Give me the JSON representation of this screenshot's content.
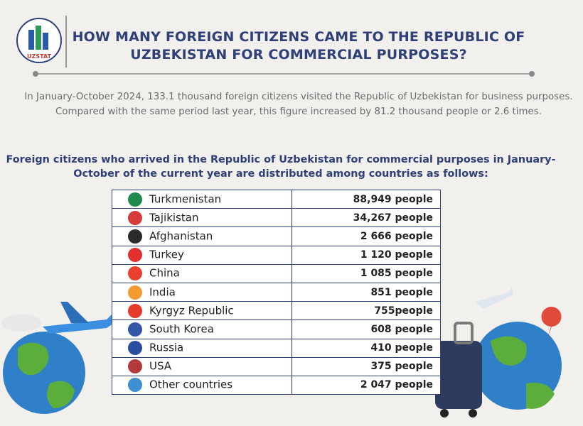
{
  "header": {
    "logo_text": "UZSTAT",
    "title": "HOW MANY FOREIGN CITIZENS CAME TO THE REPUBLIC OF UZBEKISTAN FOR COMMERCIAL PURPOSES?"
  },
  "intro": "In January-October 2024, 133.1 thousand foreign citizens visited the Republic of Uzbekistan for business purposes. Compared with the same period last year, this figure increased by 81.2 thousand people or 2.6 times.",
  "subtitle": "Foreign citizens who arrived in the Republic of Uzbekistan for commercial purposes in January-October of the current year are distributed among countries as follows:",
  "table": {
    "rows": [
      [
        "Turkmenistan",
        "88,949 people"
      ],
      [
        "Tajikistan",
        "34,267 people"
      ],
      [
        "Afghanistan",
        "2 666 people"
      ],
      [
        "Turkey",
        "1 120 people"
      ],
      [
        "China",
        "1 085 people"
      ],
      [
        "India",
        "851 people"
      ],
      [
        "Kyrgyz Republic",
        "755people"
      ],
      [
        "South Korea",
        "608 people"
      ],
      [
        "Russia",
        "410 people"
      ],
      [
        "USA",
        "375 people"
      ],
      [
        "Other countries",
        "2 047 people"
      ]
    ]
  }
}
